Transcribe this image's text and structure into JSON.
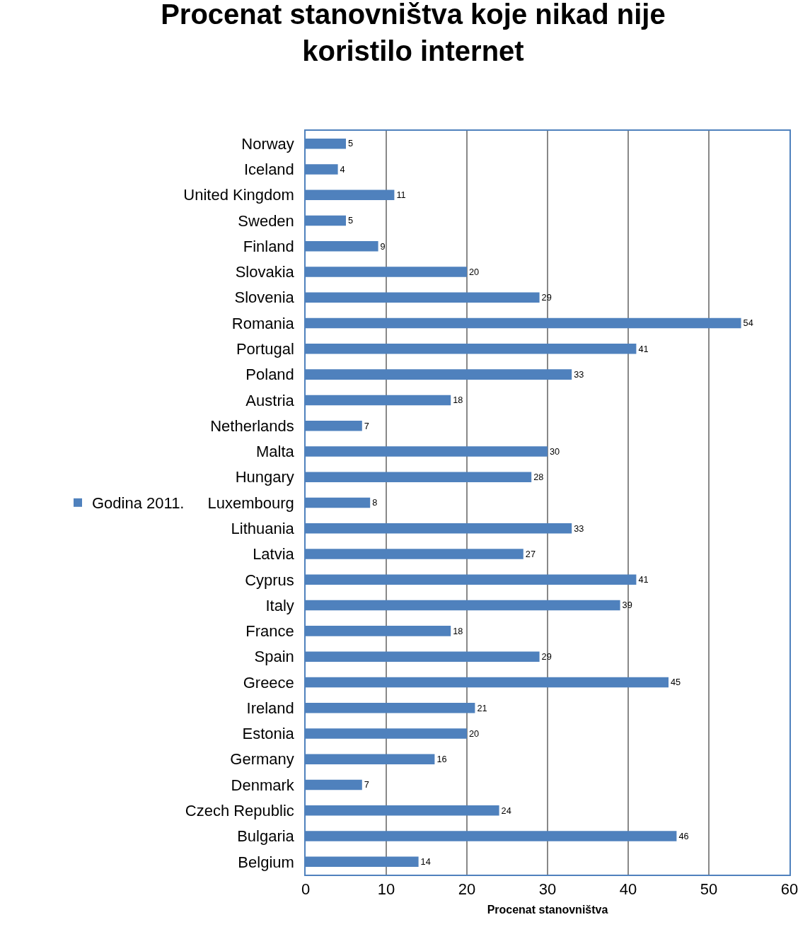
{
  "chart_data": {
    "type": "bar",
    "title": "Procenat stanovništva koje nikad nije koristilo internet",
    "xlabel": "Procenat stanovništva",
    "orientation": "horizontal",
    "categories": [
      "Norway",
      "Iceland",
      "United Kingdom",
      "Sweden",
      "Finland",
      "Slovakia",
      "Slovenia",
      "Romania",
      "Portugal",
      "Poland",
      "Austria",
      "Netherlands",
      "Malta",
      "Hungary",
      "Luxembourg",
      "Lithuania",
      "Latvia",
      "Cyprus",
      "Italy",
      "France",
      "Spain",
      "Greece",
      "Ireland",
      "Estonia",
      "Germany",
      "Denmark",
      "Czech Republic",
      "Bulgaria",
      "Belgium"
    ],
    "series": [
      {
        "name": "Godina 2011.",
        "color": "#4f81bd",
        "values": [
          5,
          4,
          11,
          5,
          9,
          20,
          29,
          54,
          41,
          33,
          18,
          7,
          30,
          28,
          8,
          33,
          27,
          41,
          39,
          18,
          29,
          45,
          21,
          20,
          16,
          7,
          24,
          46,
          14
        ]
      }
    ],
    "xlim": [
      0,
      60
    ],
    "xticks": [
      0,
      10,
      20,
      30,
      40,
      50,
      60
    ],
    "grid": "x",
    "legend": "left",
    "data_labels": true
  }
}
